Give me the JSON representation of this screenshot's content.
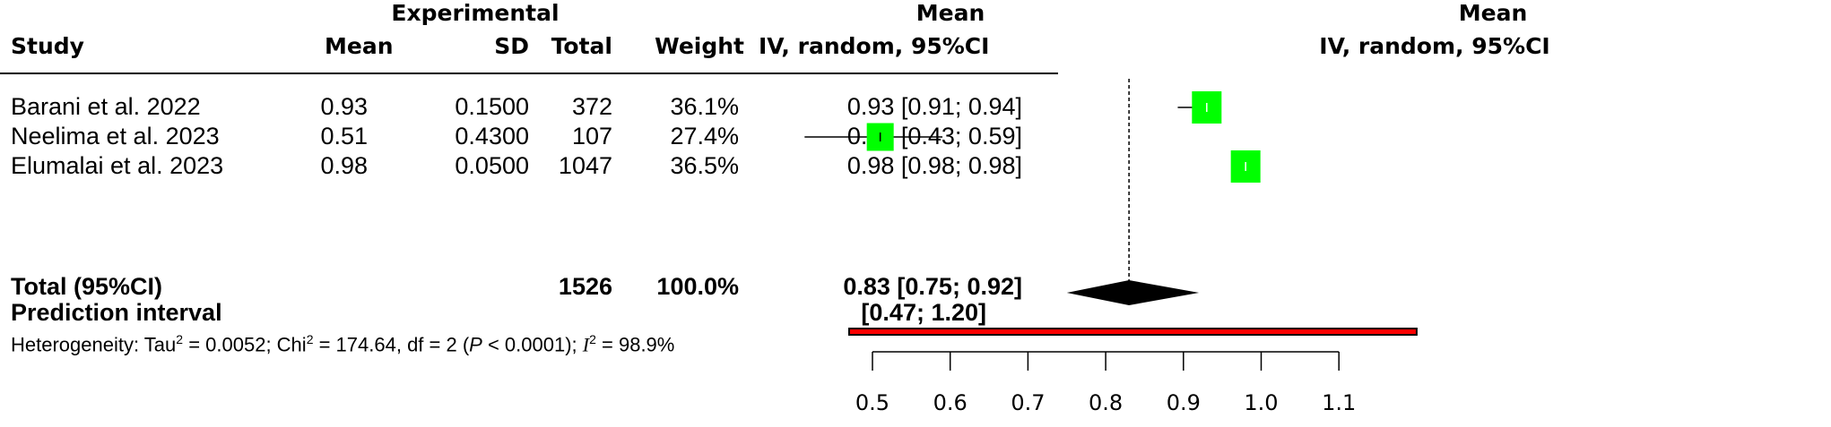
{
  "header": {
    "group_label": "Experimental",
    "study": "Study",
    "mean": "Mean",
    "sd": "SD",
    "total": "Total",
    "weight": "Weight",
    "effect_top": "Mean",
    "effect_bottom": "IV, random, 95%CI",
    "plot_top": "Mean",
    "plot_bottom": "IV, random, 95%CI"
  },
  "studies": [
    {
      "study": "Barani et al. 2022",
      "mean": "0.93",
      "sd": "0.1500",
      "total": "372",
      "weight": "36.1%",
      "effect": "0.93 [0.91; 0.94]"
    },
    {
      "study": "Neelima et al. 2023",
      "mean": "0.51",
      "sd": "0.4300",
      "total": "107",
      "weight": "27.4%",
      "effect": "0.51 [0.43; 0.59]"
    },
    {
      "study": "Elumalai et al. 2023",
      "mean": "0.98",
      "sd": "0.0500",
      "total": "1047",
      "weight": "36.5%",
      "effect": "0.98 [0.98; 0.98]"
    }
  ],
  "total_row": {
    "label": "Total (95%CI)",
    "total": "1526",
    "weight": "100.0%",
    "effect": "0.83 [0.75; 0.92]"
  },
  "prediction_row": {
    "label": "Prediction interval",
    "effect": "[0.47; 1.20]"
  },
  "heterogeneity": {
    "prefix": "Heterogeneity: Tau",
    "tau_val": " = 0.0052; Chi",
    "chi_val": " = 174.64, df = 2 (",
    "p": "P",
    "p_val": " < 0.0001); ",
    "i": "I",
    "i_val": " = 98.9%",
    "sup": "2"
  },
  "chart_data": {
    "type": "forest",
    "xlim": [
      0.47,
      1.2
    ],
    "ticks": [
      0.5,
      0.6,
      0.7,
      0.8,
      0.9,
      1.0,
      1.1
    ],
    "tick_labels": [
      "0.5",
      "0.6",
      "0.7",
      "0.8",
      "0.9",
      "1.0",
      "1.1"
    ],
    "reference_line": 0.83,
    "studies": [
      {
        "estimate": 0.93,
        "lower": 0.91,
        "upper": 0.94,
        "weight": 36.1
      },
      {
        "estimate": 0.51,
        "lower": 0.43,
        "upper": 0.59,
        "weight": 27.4
      },
      {
        "estimate": 0.98,
        "lower": 0.98,
        "upper": 0.98,
        "weight": 36.5
      }
    ],
    "pooled": {
      "estimate": 0.83,
      "lower": 0.75,
      "upper": 0.92
    },
    "prediction_interval": [
      0.47,
      1.2
    ],
    "colors": {
      "square": "#00ff00",
      "diamond": "#000000",
      "prediction": "#ff0000"
    }
  }
}
